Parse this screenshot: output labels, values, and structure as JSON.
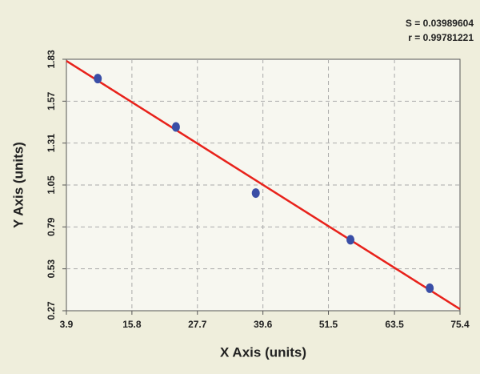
{
  "chart_data": {
    "type": "scatter",
    "x_label": "X Axis (units)",
    "y_label": "Y Axis (units)",
    "annotations": [
      "S = 0.03989604",
      "r = 0.99781221"
    ],
    "points": {
      "color": "#3a4ea6",
      "x": [
        9.6,
        23.8,
        38.3,
        55.5,
        69.9
      ],
      "y": [
        1.71,
        1.41,
        1.0,
        0.71,
        0.41
      ]
    },
    "fit_line": {
      "color": "#e8221b",
      "x": [
        3.9,
        75.4
      ],
      "y": [
        1.82,
        0.28
      ]
    },
    "xlim": [
      3.9,
      75.4
    ],
    "xticks": [
      3.9,
      15.8,
      27.7,
      39.6,
      51.5,
      63.5,
      75.4
    ],
    "ylim": [
      0.27,
      1.83
    ],
    "yticks": [
      0.27,
      0.53,
      0.79,
      1.05,
      1.31,
      1.57,
      1.83
    ],
    "grid": true
  }
}
